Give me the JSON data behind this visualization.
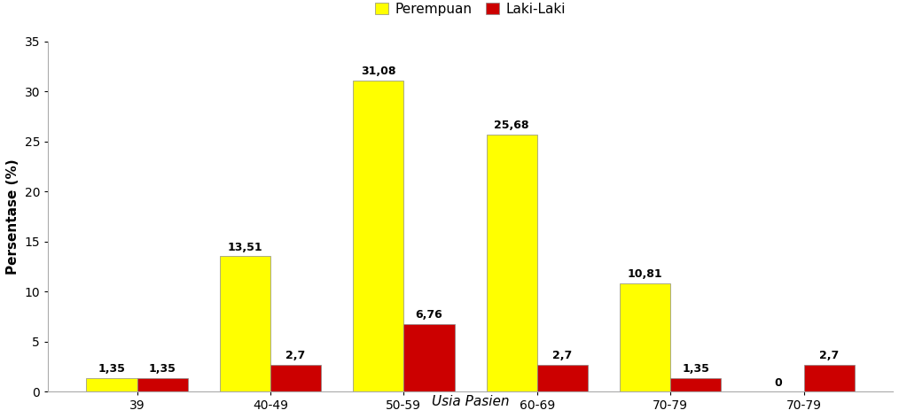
{
  "categories": [
    "39",
    "40-49",
    "50-59",
    "60-69",
    "70-79",
    "70-79"
  ],
  "perempuan": [
    1.35,
    13.51,
    31.08,
    25.68,
    10.81,
    0
  ],
  "laki_laki": [
    1.35,
    2.7,
    6.76,
    2.7,
    1.35,
    2.7
  ],
  "perempuan_labels": [
    "1,35",
    "13,51",
    "31,08",
    "25,68",
    "10,81",
    "0"
  ],
  "laki_laki_labels": [
    "1,35",
    "2,7",
    "6,76",
    "2,7",
    "1,35",
    "2,7"
  ],
  "color_perempuan": "#FFFF00",
  "color_laki": "#CC0000",
  "ylabel": "Persentase (%)",
  "xlabel": "Usia Pasien",
  "legend_perempuan": "Perempuan",
  "legend_laki": "Laki-Laki",
  "ylim": [
    0,
    35
  ],
  "yticks": [
    0,
    5,
    10,
    15,
    20,
    25,
    30,
    35
  ],
  "bar_width": 0.38,
  "background_color": "#ffffff",
  "axis_label_fontsize": 11,
  "label_fontsize": 9,
  "tick_fontsize": 10,
  "legend_fontsize": 11
}
